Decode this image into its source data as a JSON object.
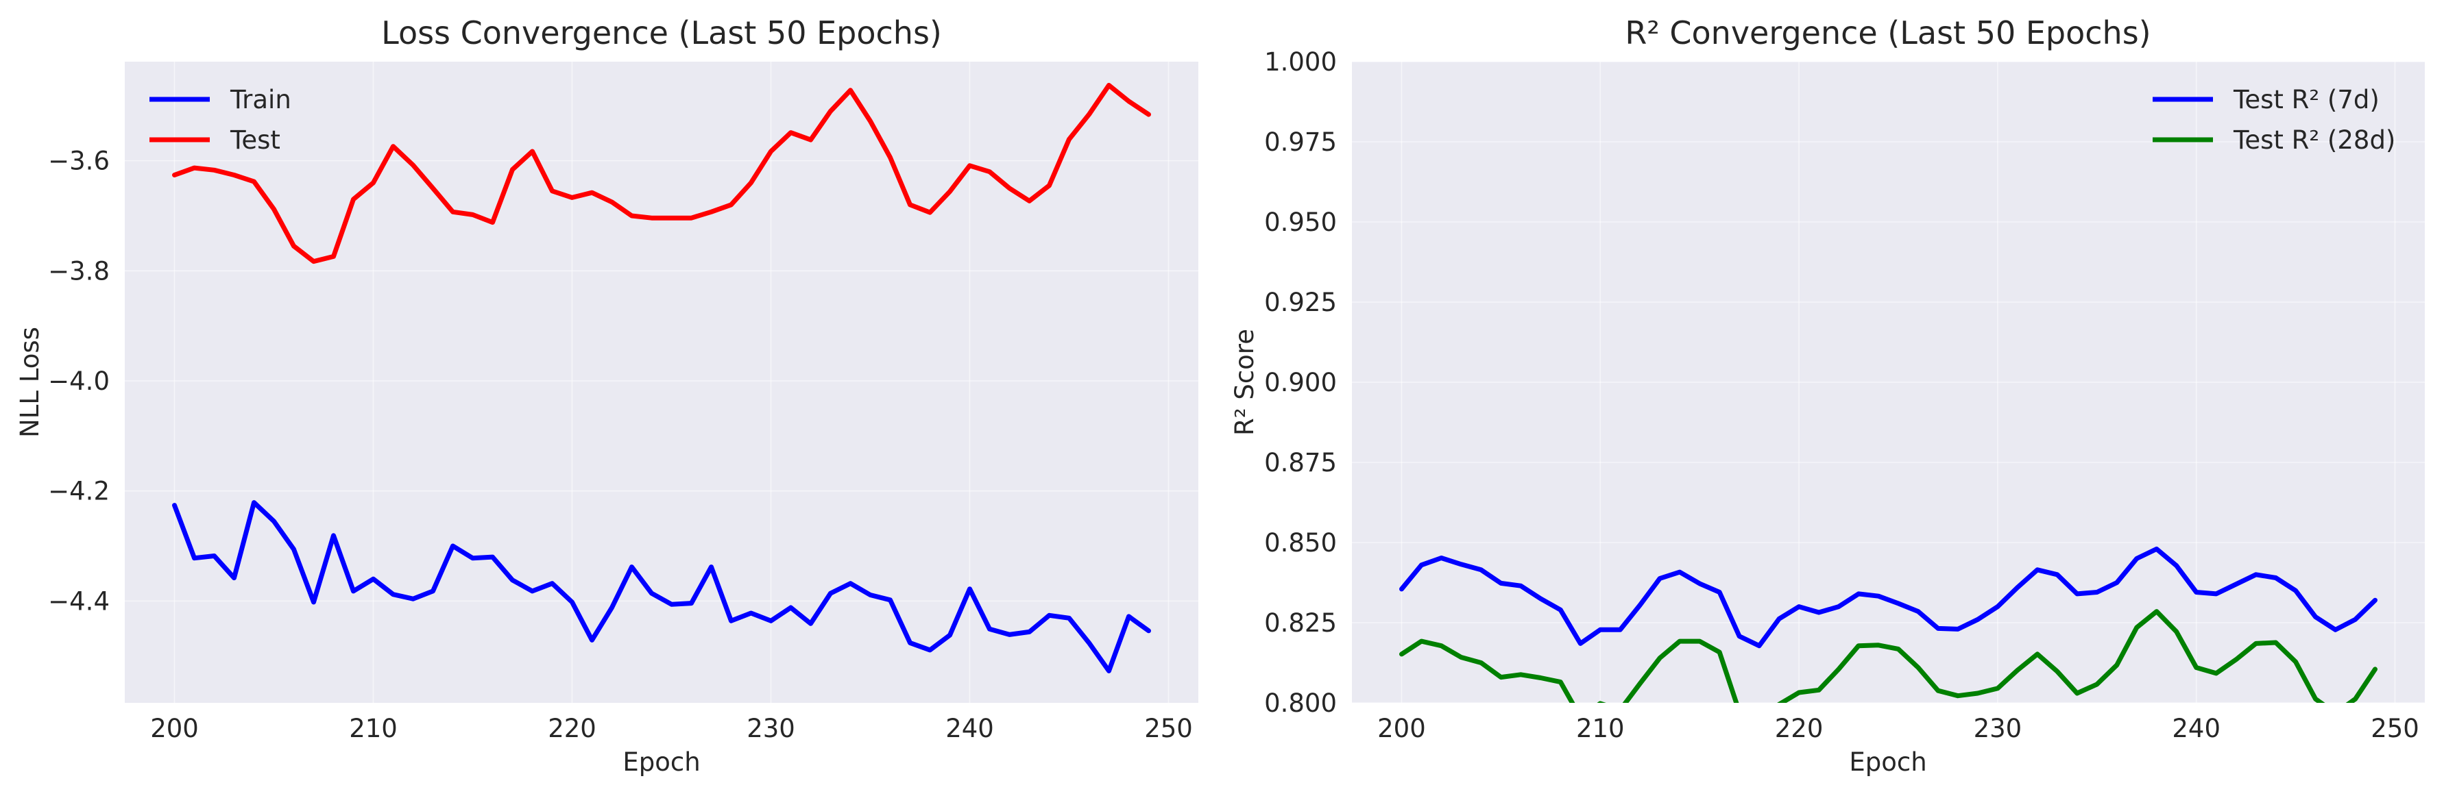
{
  "chart_data": [
    {
      "type": "line",
      "title": "Loss Convergence (Last 50 Epochs)",
      "xlabel": "Epoch",
      "ylabel": "NLL Loss",
      "xlim": [
        197.5,
        251.5
      ],
      "ylim": [
        -4.585,
        -3.42
      ],
      "xticks": [
        200,
        210,
        220,
        230,
        240,
        250
      ],
      "yticks": [
        -4.4,
        -4.2,
        -4.0,
        -3.8,
        -3.6
      ],
      "ytick_labels": [
        "−4.4",
        "−4.2",
        "−4.0",
        "−3.8",
        "−3.6"
      ],
      "grid": true,
      "legend": "upper-left",
      "x": [
        200,
        201,
        202,
        203,
        204,
        205,
        206,
        207,
        208,
        209,
        210,
        211,
        212,
        213,
        214,
        215,
        216,
        217,
        218,
        219,
        220,
        221,
        222,
        223,
        224,
        225,
        226,
        227,
        228,
        229,
        230,
        231,
        232,
        233,
        234,
        235,
        236,
        237,
        238,
        239,
        240,
        241,
        242,
        243,
        244,
        245,
        246,
        247,
        248,
        249
      ],
      "series": [
        {
          "name": "Train",
          "color": "#0000ff",
          "values": [
            -4.226,
            -4.322,
            -4.318,
            -4.358,
            -4.221,
            -4.255,
            -4.306,
            -4.402,
            -4.281,
            -4.382,
            -4.36,
            -4.388,
            -4.396,
            -4.382,
            -4.3,
            -4.322,
            -4.32,
            -4.362,
            -4.382,
            -4.368,
            -4.402,
            -4.471,
            -4.412,
            -4.338,
            -4.386,
            -4.406,
            -4.404,
            -4.338,
            -4.436,
            -4.422,
            -4.436,
            -4.412,
            -4.441,
            -4.386,
            -4.368,
            -4.389,
            -4.398,
            -4.476,
            -4.489,
            -4.462,
            -4.378,
            -4.451,
            -4.461,
            -4.456,
            -4.426,
            -4.431,
            -4.476,
            -4.527,
            -4.428,
            -4.454
          ]
        },
        {
          "name": "Test",
          "color": "#ff0000",
          "values": [
            -3.626,
            -3.613,
            -3.617,
            -3.626,
            -3.638,
            -3.688,
            -3.755,
            -3.783,
            -3.774,
            -3.67,
            -3.64,
            -3.574,
            -3.608,
            -3.65,
            -3.693,
            -3.698,
            -3.712,
            -3.616,
            -3.583,
            -3.655,
            -3.667,
            -3.658,
            -3.675,
            -3.7,
            -3.704,
            -3.704,
            -3.704,
            -3.693,
            -3.68,
            -3.64,
            -3.583,
            -3.549,
            -3.562,
            -3.51,
            -3.472,
            -3.528,
            -3.594,
            -3.68,
            -3.694,
            -3.656,
            -3.609,
            -3.62,
            -3.65,
            -3.673,
            -3.645,
            -3.561,
            -3.516,
            -3.463,
            -3.492,
            -3.516
          ]
        }
      ]
    },
    {
      "type": "line",
      "title": "R² Convergence (Last 50 Epochs)",
      "xlabel": "Epoch",
      "ylabel": "R² Score",
      "xlim": [
        197.5,
        251.5
      ],
      "ylim": [
        0.8,
        1.0
      ],
      "xticks": [
        200,
        210,
        220,
        230,
        240,
        250
      ],
      "yticks": [
        0.8,
        0.825,
        0.85,
        0.875,
        0.9,
        0.925,
        0.95,
        0.975,
        1.0
      ],
      "ytick_labels": [
        "0.800",
        "0.825",
        "0.850",
        "0.875",
        "0.900",
        "0.925",
        "0.950",
        "0.975",
        "1.000"
      ],
      "grid": true,
      "legend": "upper-right",
      "x": [
        200,
        201,
        202,
        203,
        204,
        205,
        206,
        207,
        208,
        209,
        210,
        211,
        212,
        213,
        214,
        215,
        216,
        217,
        218,
        219,
        220,
        221,
        222,
        223,
        224,
        225,
        226,
        227,
        228,
        229,
        230,
        231,
        232,
        233,
        234,
        235,
        236,
        237,
        238,
        239,
        240,
        241,
        242,
        243,
        244,
        245,
        246,
        247,
        248,
        249
      ],
      "series": [
        {
          "name": "Test R² (7d)",
          "color": "#0000ff",
          "values": [
            0.8355,
            0.843,
            0.8452,
            0.8432,
            0.8415,
            0.8373,
            0.8365,
            0.8325,
            0.829,
            0.8185,
            0.8228,
            0.8228,
            0.8305,
            0.8388,
            0.8408,
            0.8372,
            0.8345,
            0.8208,
            0.8178,
            0.8262,
            0.83,
            0.8282,
            0.83,
            0.834,
            0.8333,
            0.831,
            0.8285,
            0.8232,
            0.823,
            0.826,
            0.83,
            0.836,
            0.8415,
            0.84,
            0.834,
            0.8345,
            0.8375,
            0.845,
            0.848,
            0.8428,
            0.8345,
            0.834,
            0.837,
            0.84,
            0.839,
            0.835,
            0.8268,
            0.8228,
            0.826,
            0.832
          ]
        },
        {
          "name": "Test R² (28d)",
          "color": "#008000",
          "values": [
            0.8152,
            0.8192,
            0.8178,
            0.8142,
            0.8125,
            0.808,
            0.8088,
            0.8078,
            0.8065,
            0.7955,
            0.7998,
            0.7978,
            0.806,
            0.814,
            0.8192,
            0.8192,
            0.8158,
            0.7972,
            0.7958,
            0.7995,
            0.8032,
            0.804,
            0.8105,
            0.8178,
            0.818,
            0.8168,
            0.811,
            0.8038,
            0.8022,
            0.803,
            0.8045,
            0.8102,
            0.8152,
            0.8098,
            0.803,
            0.8058,
            0.8118,
            0.8235,
            0.8285,
            0.8222,
            0.811,
            0.8092,
            0.8135,
            0.8185,
            0.8188,
            0.8128,
            0.8012,
            0.7968,
            0.8012,
            0.8105
          ]
        }
      ]
    }
  ]
}
